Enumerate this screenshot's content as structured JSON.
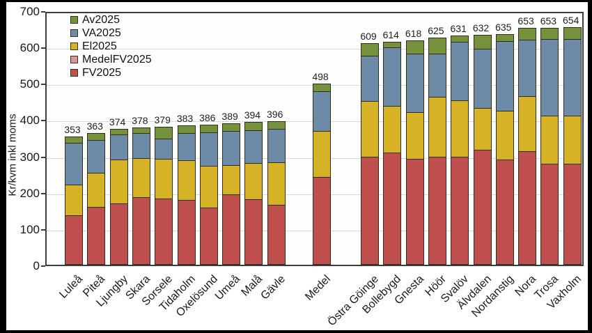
{
  "frame": {
    "outer_border_color": "#000000",
    "plot_border_color": "#3d3d3d",
    "gridline_color": "#d9d9d9",
    "background": "#ffffff",
    "text_color": "#1a1a1a"
  },
  "chart_data": {
    "type": "bar",
    "stacked": true,
    "ylabel": "Kr/kvm inkl moms",
    "ylim": [
      0,
      700
    ],
    "yticks": [
      0,
      100,
      200,
      300,
      400,
      500,
      600,
      700
    ],
    "grid": true,
    "legend_position": "top-left-inside",
    "legend": [
      {
        "name": "Av2025",
        "color": "#76913b"
      },
      {
        "name": "VA2025",
        "color": "#6d8ba6"
      },
      {
        "name": "El2025",
        "color": "#d6b226"
      },
      {
        "name": "MedelFV2025",
        "color": "#d99694"
      },
      {
        "name": "FV2025",
        "color": "#c0504d"
      }
    ],
    "stack_order_bottom_to_top": [
      "FV2025",
      "El2025",
      "VA2025",
      "Av2025"
    ],
    "series_colors": {
      "FV2025": "#c0504d",
      "El2025": "#d6b226",
      "VA2025": "#6d8ba6",
      "Av2025": "#76913b",
      "MedelFV2025": "#d99694"
    },
    "bars": [
      {
        "label": "Luleå",
        "group": "left",
        "total": 353,
        "FV2025": 135,
        "El2025": 83,
        "VA2025": 116,
        "Av2025": 19
      },
      {
        "label": "Piteå",
        "group": "left",
        "total": 363,
        "FV2025": 157,
        "El2025": 95,
        "VA2025": 90,
        "Av2025": 21
      },
      {
        "label": "Ljungby",
        "group": "left",
        "total": 374,
        "FV2025": 166,
        "El2025": 122,
        "VA2025": 68,
        "Av2025": 18
      },
      {
        "label": "Skara",
        "group": "left",
        "total": 378,
        "FV2025": 184,
        "El2025": 107,
        "VA2025": 69,
        "Av2025": 18
      },
      {
        "label": "Sorsele",
        "group": "left",
        "total": 379,
        "FV2025": 181,
        "El2025": 109,
        "VA2025": 56,
        "Av2025": 33
      },
      {
        "label": "Tidaholm",
        "group": "left",
        "total": 383,
        "FV2025": 176,
        "El2025": 110,
        "VA2025": 74,
        "Av2025": 23
      },
      {
        "label": "Oxelösund",
        "group": "left",
        "total": 386,
        "FV2025": 156,
        "El2025": 115,
        "VA2025": 92,
        "Av2025": 23
      },
      {
        "label": "Umeå",
        "group": "left",
        "total": 389,
        "FV2025": 191,
        "El2025": 81,
        "VA2025": 95,
        "Av2025": 22
      },
      {
        "label": "Malå",
        "group": "left",
        "total": 394,
        "FV2025": 178,
        "El2025": 100,
        "VA2025": 91,
        "Av2025": 25
      },
      {
        "label": "Gävle",
        "group": "left",
        "total": 396,
        "FV2025": 164,
        "El2025": 116,
        "VA2025": 92,
        "Av2025": 24
      },
      {
        "label": "Medel",
        "group": "medel",
        "total": 498,
        "FV2025": 239,
        "El2025": 128,
        "VA2025": 109,
        "Av2025": 22
      },
      {
        "label": "Östra Göinge",
        "group": "right",
        "total": 609,
        "FV2025": 295,
        "El2025": 153,
        "VA2025": 126,
        "Av2025": 35
      },
      {
        "label": "Bollebygd",
        "group": "right",
        "total": 614,
        "FV2025": 306,
        "El2025": 130,
        "VA2025": 160,
        "Av2025": 18
      },
      {
        "label": "Gnesta",
        "group": "right",
        "total": 618,
        "FV2025": 290,
        "El2025": 128,
        "VA2025": 161,
        "Av2025": 39
      },
      {
        "label": "Höör",
        "group": "right",
        "total": 625,
        "FV2025": 296,
        "El2025": 164,
        "VA2025": 120,
        "Av2025": 45
      },
      {
        "label": "Svalöv",
        "group": "right",
        "total": 631,
        "FV2025": 295,
        "El2025": 155,
        "VA2025": 161,
        "Av2025": 20
      },
      {
        "label": "Älvdalen",
        "group": "right",
        "total": 632,
        "FV2025": 314,
        "El2025": 116,
        "VA2025": 162,
        "Av2025": 40
      },
      {
        "label": "Nordanstig",
        "group": "right",
        "total": 635,
        "FV2025": 288,
        "El2025": 134,
        "VA2025": 191,
        "Av2025": 22
      },
      {
        "label": "Nora",
        "group": "right",
        "total": 653,
        "FV2025": 310,
        "El2025": 152,
        "VA2025": 155,
        "Av2025": 36
      },
      {
        "label": "Trosa",
        "group": "right",
        "total": 653,
        "FV2025": 277,
        "El2025": 131,
        "VA2025": 211,
        "Av2025": 34
      },
      {
        "label": "Vaxholm",
        "group": "right",
        "total": 654,
        "FV2025": 276,
        "El2025": 132,
        "VA2025": 212,
        "Av2025": 34
      }
    ]
  }
}
